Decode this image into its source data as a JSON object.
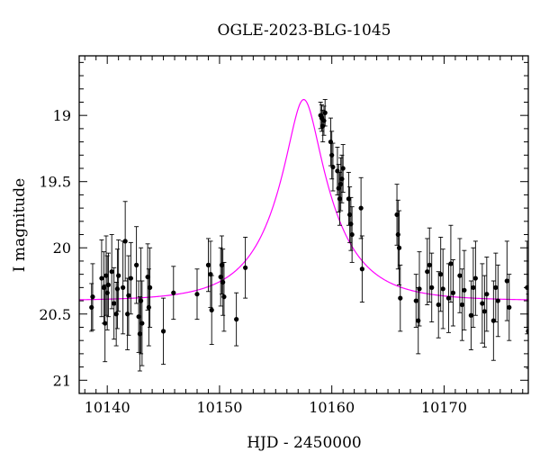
{
  "chart_data": {
    "type": "scatter",
    "title": "OGLE-2023-BLG-1045",
    "xlabel": "HJD - 2450000",
    "ylabel": "I magnitude",
    "xlim": [
      10137.5,
      10177.5
    ],
    "ylim": [
      21.1,
      18.55
    ],
    "y_inverted": true,
    "x_ticks": [
      10140,
      10150,
      10160,
      10170
    ],
    "y_ticks": [
      19,
      19.5,
      20,
      20.5,
      21
    ],
    "y_tick_labels": [
      "19",
      "19.5",
      "20",
      "20.5",
      "21"
    ],
    "grid": false,
    "colors": {
      "points": "#000000",
      "model": "#ff00ff",
      "frame": "#000000"
    },
    "model": {
      "type": "pspl",
      "t0": 10157.5,
      "peak_mag": 18.88,
      "baseline_mag": 20.4
    },
    "series": [
      {
        "type": "scatter",
        "points": [
          [
            10138.6,
            20.45,
            0.18
          ],
          [
            10138.7,
            20.37,
            0.25
          ],
          [
            10139.5,
            20.23,
            0.29
          ],
          [
            10139.7,
            20.3,
            0.27
          ],
          [
            10139.8,
            20.57,
            0.29
          ],
          [
            10139.9,
            20.21,
            0.3
          ],
          [
            10140.0,
            20.34,
            0.28
          ],
          [
            10140.1,
            20.28,
            0.24
          ],
          [
            10140.4,
            20.18,
            0.28
          ],
          [
            10140.6,
            20.42,
            0.27
          ],
          [
            10140.8,
            20.5,
            0.24
          ],
          [
            10140.9,
            20.31,
            0.3
          ],
          [
            10141.0,
            20.21,
            0.27
          ],
          [
            10141.4,
            20.3,
            0.35
          ],
          [
            10141.6,
            19.95,
            0.3
          ],
          [
            10141.8,
            20.5,
            0.27
          ],
          [
            10141.9,
            20.36,
            0.3
          ],
          [
            10142.1,
            20.23,
            0.27
          ],
          [
            10142.6,
            20.13,
            0.29
          ],
          [
            10142.8,
            20.52,
            0.27
          ],
          [
            10142.9,
            20.65,
            0.28
          ],
          [
            10143.0,
            20.4,
            0.4
          ],
          [
            10143.1,
            20.57,
            0.32
          ],
          [
            10143.6,
            20.22,
            0.25
          ],
          [
            10143.7,
            20.45,
            0.29
          ],
          [
            10143.8,
            20.3,
            0.3
          ],
          [
            10145.0,
            20.63,
            0.25
          ],
          [
            10145.9,
            20.34,
            0.2
          ],
          [
            10148.0,
            20.35,
            0.19
          ],
          [
            10149.0,
            20.13,
            0.2
          ],
          [
            10149.2,
            20.2,
            0.25
          ],
          [
            10149.3,
            20.47,
            0.26
          ],
          [
            10150.1,
            20.22,
            0.22
          ],
          [
            10150.2,
            20.13,
            0.22
          ],
          [
            10150.3,
            20.26,
            0.25
          ],
          [
            10150.4,
            20.37,
            0.26
          ],
          [
            10151.5,
            20.54,
            0.2
          ],
          [
            10152.3,
            20.15,
            0.23
          ],
          [
            10159.0,
            19.0,
            0.1
          ],
          [
            10159.1,
            19.02,
            0.1
          ],
          [
            10159.2,
            19.08,
            0.12
          ],
          [
            10159.3,
            19.04,
            0.11
          ],
          [
            10159.4,
            18.98,
            0.1
          ],
          [
            10159.9,
            19.2,
            0.18
          ],
          [
            10160.0,
            19.3,
            0.18
          ],
          [
            10160.1,
            19.39,
            0.18
          ],
          [
            10160.5,
            19.42,
            0.18
          ],
          [
            10160.6,
            19.55,
            0.18
          ],
          [
            10160.7,
            19.63,
            0.2
          ],
          [
            10160.8,
            19.52,
            0.2
          ],
          [
            10160.9,
            19.48,
            0.18
          ],
          [
            10161.0,
            19.4,
            0.18
          ],
          [
            10161.5,
            19.63,
            0.2
          ],
          [
            10161.6,
            19.75,
            0.21
          ],
          [
            10161.7,
            19.82,
            0.2
          ],
          [
            10161.8,
            19.9,
            0.21
          ],
          [
            10162.6,
            19.7,
            0.23
          ],
          [
            10162.7,
            20.16,
            0.25
          ],
          [
            10165.8,
            19.75,
            0.23
          ],
          [
            10165.9,
            19.9,
            0.26
          ],
          [
            10166.0,
            20.0,
            0.28
          ],
          [
            10166.1,
            20.38,
            0.25
          ],
          [
            10167.5,
            20.4,
            0.2
          ],
          [
            10167.7,
            20.55,
            0.25
          ],
          [
            10167.8,
            20.31,
            0.28
          ],
          [
            10168.5,
            20.18,
            0.25
          ],
          [
            10168.7,
            20.13,
            0.28
          ],
          [
            10168.9,
            20.3,
            0.26
          ],
          [
            10169.5,
            20.43,
            0.25
          ],
          [
            10169.7,
            20.2,
            0.28
          ],
          [
            10169.9,
            20.31,
            0.3
          ],
          [
            10170.4,
            20.38,
            0.26
          ],
          [
            10170.6,
            20.12,
            0.29
          ],
          [
            10170.8,
            20.34,
            0.25
          ],
          [
            10171.4,
            20.21,
            0.28
          ],
          [
            10171.6,
            20.43,
            0.27
          ],
          [
            10171.8,
            20.32,
            0.3
          ],
          [
            10172.4,
            20.51,
            0.26
          ],
          [
            10172.6,
            20.3,
            0.3
          ],
          [
            10172.8,
            20.23,
            0.28
          ],
          [
            10173.4,
            20.42,
            0.3
          ],
          [
            10173.6,
            20.48,
            0.27
          ],
          [
            10173.8,
            20.35,
            0.28
          ],
          [
            10174.4,
            20.55,
            0.3
          ],
          [
            10174.6,
            20.3,
            0.26
          ],
          [
            10174.8,
            20.4,
            0.27
          ],
          [
            10175.6,
            20.25,
            0.3
          ],
          [
            10175.8,
            20.45,
            0.25
          ],
          [
            10177.4,
            20.3,
            0.35
          ],
          [
            10177.5,
            20.63,
            0.28
          ]
        ]
      }
    ]
  }
}
